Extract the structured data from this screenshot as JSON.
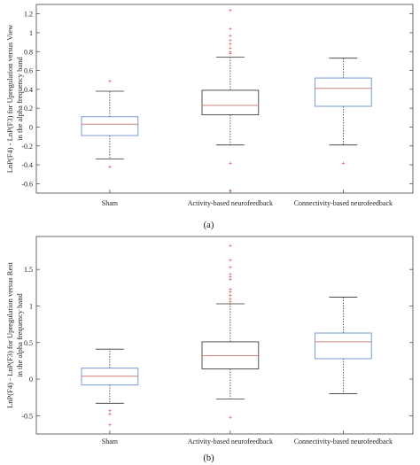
{
  "chart_data": [
    {
      "type": "box",
      "caption": "(a)",
      "ylabel_line1": "LnP(F4) - LnP(F3) for Upregulation versus View",
      "ylabel_line2": "in the alpha frequency band",
      "categories": [
        "Sham",
        "Activity-based neurofeedback",
        "Connectivity-based neurofeedback"
      ],
      "ylim": [
        -0.7,
        1.3
      ],
      "yticks": [
        -0.6,
        -0.4,
        -0.2,
        0,
        0.2,
        0.4,
        0.6,
        0.8,
        1,
        1.2
      ],
      "ytick_labels": [
        "-0.6",
        "-0.4",
        "-0.2",
        "0",
        "0.2",
        "0.4",
        "0.6",
        "0.8",
        "1",
        "1.2"
      ],
      "boxes": [
        {
          "whisker_low": -0.34,
          "q1": -0.09,
          "median": 0.03,
          "q3": 0.11,
          "whisker_high": 0.38,
          "outliers": [
            0.49,
            -0.42
          ],
          "box_color": "#7a9ad8",
          "median_color": "#c98080"
        },
        {
          "whisker_low": -0.19,
          "q1": 0.13,
          "median": 0.23,
          "q3": 0.39,
          "whisker_high": 0.74,
          "outliers": [
            1.24,
            1.04,
            0.97,
            0.92,
            0.88,
            0.84,
            0.8,
            0.78,
            -0.38,
            -0.67
          ],
          "box_color": "#555555",
          "median_color": "#c98080"
        },
        {
          "whisker_low": -0.19,
          "q1": 0.22,
          "median": 0.41,
          "q3": 0.52,
          "whisker_high": 0.73,
          "outliers": [
            -0.38
          ],
          "box_color": "#7a9ad8",
          "median_color": "#c98080"
        }
      ]
    },
    {
      "type": "box",
      "caption": "(b)",
      "ylabel_line1": "LnP(F4) - LnP(F3) for Upregulation versus Rest",
      "ylabel_line2": "in the alpha frequency band",
      "categories": [
        "Sham",
        "Activity-based neurofeedback",
        "Connectivity-based neurofeedback"
      ],
      "ylim": [
        -0.75,
        1.95
      ],
      "yticks": [
        -0.5,
        0,
        0.5,
        1,
        1.5
      ],
      "ytick_labels": [
        "-0.5",
        "0",
        "0.5",
        "1",
        "1.5"
      ],
      "boxes": [
        {
          "whisker_low": -0.33,
          "q1": -0.08,
          "median": 0.04,
          "q3": 0.15,
          "whisker_high": 0.41,
          "outliers": [
            -0.43,
            -0.48,
            -0.62
          ],
          "box_color": "#7a9ad8",
          "median_color": "#c98080"
        },
        {
          "whisker_low": -0.27,
          "q1": 0.14,
          "median": 0.32,
          "q3": 0.51,
          "whisker_high": 1.03,
          "outliers": [
            1.83,
            1.63,
            1.53,
            1.44,
            1.4,
            1.37,
            1.23,
            1.2,
            1.15,
            1.1,
            1.06,
            -0.52
          ],
          "box_color": "#555555",
          "median_color": "#c98080"
        },
        {
          "whisker_low": -0.2,
          "q1": 0.28,
          "median": 0.51,
          "q3": 0.63,
          "whisker_high": 1.12,
          "outliers": [],
          "box_color": "#7a9ad8",
          "median_color": "#c98080"
        }
      ]
    }
  ]
}
